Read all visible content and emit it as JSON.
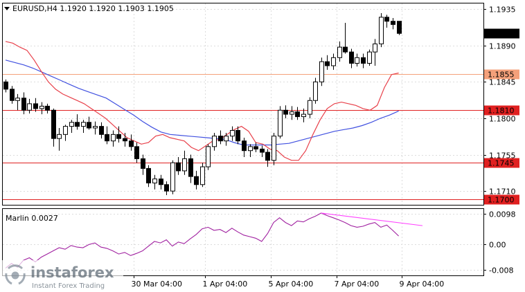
{
  "header": {
    "symbol_line": "EURUSD,H4  1.1920 1.1920 1.1903 1.1905"
  },
  "indicator": {
    "label": "Marlin 0.0027"
  },
  "watermark": {
    "brand": "instaforex",
    "tagline": "Instant Forex Trading"
  },
  "colors": {
    "candle": "#000000",
    "ma_fast": "#e8404a",
    "ma_slow": "#4050e0",
    "level_orange": "#f4a07a",
    "level_red": "#e02020",
    "oscillator": "#a020a0",
    "trend": "#ff40ff",
    "grid": "#dcdcdc"
  },
  "chart_data": [
    {
      "type": "candlestick",
      "title": "EURUSD,H4",
      "ylim": [
        1.1693,
        1.1942
      ],
      "y_ticks": [
        "1.1935",
        "1.1890",
        "1.1845",
        "1.1800",
        "1.1755",
        "1.1710"
      ],
      "x_ticks": [
        "30 Mar 04:00",
        "1 Apr 04:00",
        "5 Apr 04:00",
        "7 Apr 04:00",
        "9 Apr 04:00"
      ],
      "current_price": "1.1905",
      "levels": [
        {
          "label": "1.1855",
          "value": 1.1855,
          "color": "#f4a07a"
        },
        {
          "label": "1.1810",
          "value": 1.181,
          "color": "#e02020"
        },
        {
          "label": "1.1745",
          "value": 1.1745,
          "color": "#e02020"
        },
        {
          "label": "1.1700",
          "value": 1.17,
          "color": "#e02020"
        }
      ],
      "candles": [
        [
          1.1845,
          1.1848,
          1.1832,
          1.1836
        ],
        [
          1.1836,
          1.184,
          1.1818,
          1.1822
        ],
        [
          1.1822,
          1.183,
          1.181,
          1.1825
        ],
        [
          1.1825,
          1.1832,
          1.1805,
          1.181
        ],
        [
          1.181,
          1.1824,
          1.1806,
          1.1818
        ],
        [
          1.1818,
          1.1825,
          1.1808,
          1.1812
        ],
        [
          1.1812,
          1.182,
          1.1805,
          1.1815
        ],
        [
          1.1815,
          1.1818,
          1.1806,
          1.181
        ],
        [
          1.181,
          1.1812,
          1.1765,
          1.1775
        ],
        [
          1.1775,
          1.1788,
          1.176,
          1.178
        ],
        [
          1.178,
          1.1792,
          1.1772,
          1.179
        ],
        [
          1.179,
          1.1798,
          1.1782,
          1.1795
        ],
        [
          1.1795,
          1.1805,
          1.1786,
          1.179
        ],
        [
          1.179,
          1.1798,
          1.1782,
          1.1795
        ],
        [
          1.1795,
          1.1802,
          1.1786,
          1.1788
        ],
        [
          1.1788,
          1.1796,
          1.178,
          1.179
        ],
        [
          1.179,
          1.1795,
          1.1775,
          1.178
        ],
        [
          1.178,
          1.179,
          1.1768,
          1.1772
        ],
        [
          1.1772,
          1.1785,
          1.1765,
          1.178
        ],
        [
          1.178,
          1.179,
          1.177,
          1.1775
        ],
        [
          1.1775,
          1.1782,
          1.1765,
          1.1772
        ],
        [
          1.1772,
          1.178,
          1.176,
          1.1765
        ],
        [
          1.1765,
          1.177,
          1.1745,
          1.175
        ],
        [
          1.175,
          1.1755,
          1.173,
          1.1738
        ],
        [
          1.1738,
          1.1742,
          1.1715,
          1.172
        ],
        [
          1.172,
          1.173,
          1.1712,
          1.1725
        ],
        [
          1.1725,
          1.173,
          1.1712,
          1.1718
        ],
        [
          1.1718,
          1.1722,
          1.1705,
          1.171
        ],
        [
          1.171,
          1.1748,
          1.1706,
          1.1745
        ],
        [
          1.1745,
          1.1752,
          1.173,
          1.1735
        ],
        [
          1.1735,
          1.176,
          1.173,
          1.175
        ],
        [
          1.175,
          1.1755,
          1.172,
          1.1728
        ],
        [
          1.1728,
          1.1735,
          1.1712,
          1.1718
        ],
        [
          1.1718,
          1.1745,
          1.1715,
          1.174
        ],
        [
          1.174,
          1.1768,
          1.1736,
          1.1765
        ],
        [
          1.1765,
          1.1782,
          1.176,
          1.1778
        ],
        [
          1.1778,
          1.1785,
          1.1768,
          1.1772
        ],
        [
          1.1772,
          1.1782,
          1.1766,
          1.1778
        ],
        [
          1.1778,
          1.179,
          1.1772,
          1.1785
        ],
        [
          1.1785,
          1.179,
          1.1768,
          1.1772
        ],
        [
          1.1772,
          1.1776,
          1.1752,
          1.176
        ],
        [
          1.176,
          1.1768,
          1.1752,
          1.1765
        ],
        [
          1.1765,
          1.177,
          1.1758,
          1.1762
        ],
        [
          1.1762,
          1.1766,
          1.1752,
          1.1758
        ],
        [
          1.1758,
          1.1762,
          1.174,
          1.1748
        ],
        [
          1.1748,
          1.1782,
          1.1742,
          1.1778
        ],
        [
          1.1778,
          1.1815,
          1.1775,
          1.181
        ],
        [
          1.181,
          1.1816,
          1.18,
          1.1805
        ],
        [
          1.1805,
          1.1815,
          1.1798,
          1.1808
        ],
        [
          1.1808,
          1.1814,
          1.1798,
          1.1802
        ],
        [
          1.1802,
          1.1812,
          1.1795,
          1.1805
        ],
        [
          1.1805,
          1.1826,
          1.18,
          1.1822
        ],
        [
          1.1822,
          1.185,
          1.1818,
          1.1845
        ],
        [
          1.1845,
          1.1875,
          1.184,
          1.187
        ],
        [
          1.187,
          1.1878,
          1.186,
          1.1865
        ],
        [
          1.1865,
          1.188,
          1.186,
          1.1875
        ],
        [
          1.1875,
          1.1895,
          1.187,
          1.1888
        ],
        [
          1.1888,
          1.1918,
          1.188,
          1.1882
        ],
        [
          1.1882,
          1.1886,
          1.1862,
          1.1868
        ],
        [
          1.1868,
          1.188,
          1.1864,
          1.1875
        ],
        [
          1.1875,
          1.188,
          1.1862,
          1.1868
        ],
        [
          1.1868,
          1.1885,
          1.1865,
          1.1882
        ],
        [
          1.1882,
          1.1898,
          1.1865,
          1.1892
        ],
        [
          1.1892,
          1.193,
          1.1888,
          1.1925
        ],
        [
          1.1925,
          1.1928,
          1.1912,
          1.192
        ],
        [
          1.192,
          1.1924,
          1.191,
          1.1916
        ],
        [
          1.192,
          1.192,
          1.1903,
          1.1905
        ]
      ],
      "ma_fast": [
        1.1895,
        1.1893,
        1.1888,
        1.1884,
        1.1872,
        1.1858,
        1.1845,
        1.1836,
        1.183,
        1.1826,
        1.1822,
        1.1818,
        1.1812,
        1.1806,
        1.18,
        1.1792,
        1.1784,
        1.1776,
        1.1772,
        1.1768,
        1.177,
        1.1778,
        1.178,
        1.1776,
        1.1774,
        1.1772,
        1.1764,
        1.176,
        1.1766,
        1.1772,
        1.1774,
        1.178,
        1.1786,
        1.179,
        1.1784,
        1.177,
        1.1768,
        1.1762,
        1.176,
        1.1752,
        1.1748,
        1.1748,
        1.176,
        1.178,
        1.1798,
        1.1812,
        1.1818,
        1.182,
        1.1818,
        1.1816,
        1.1812,
        1.181,
        1.1816,
        1.1838,
        1.1854,
        1.1856
      ],
      "ma_slow": [
        1.1872,
        1.1869,
        1.1866,
        1.1862,
        1.1857,
        1.1852,
        1.1847,
        1.1842,
        1.1837,
        1.1833,
        1.1829,
        1.1825,
        1.1818,
        1.1811,
        1.1804,
        1.1796,
        1.1789,
        1.1783,
        1.178,
        1.1779,
        1.1778,
        1.1777,
        1.1776,
        1.1775,
        1.1774,
        1.177,
        1.1767,
        1.1767,
        1.1767,
        1.1767,
        1.1768,
        1.1769,
        1.1772,
        1.1775,
        1.1778,
        1.1781,
        1.1784,
        1.1786,
        1.1788,
        1.1791,
        1.1795,
        1.18,
        1.1804,
        1.1809
      ],
      "oscillator": {
        "name": "Marlin",
        "value": "0.0027",
        "ylim": [
          -0.0098,
          0.0113
        ],
        "y_ticks": [
          "0.0098",
          "0.00",
          "-0.008"
        ],
        "values": [
          -0.0075,
          -0.006,
          -0.0072,
          -0.005,
          -0.0042,
          -0.0055,
          -0.004,
          -0.003,
          -0.002,
          -0.001,
          -0.0015,
          -0.0003,
          -0.0008,
          -0.001,
          0.0,
          0.0005,
          -0.0008,
          -0.0012,
          -0.002,
          -0.003,
          -0.0025,
          -0.0035,
          -0.0028,
          -0.002,
          -0.0005,
          0.001,
          0.0005,
          0.0015,
          -0.0005,
          0.0008,
          0.0003,
          0.0018,
          0.0032,
          0.005,
          0.0055,
          0.0045,
          0.0048,
          0.0038,
          0.0052,
          0.004,
          0.003,
          0.0025,
          0.002,
          0.001,
          0.0035,
          0.007,
          0.0085,
          0.007,
          0.006,
          0.0075,
          0.0072,
          0.0082,
          0.009,
          0.01,
          0.0092,
          0.0085,
          0.0078,
          0.007,
          0.006,
          0.0055,
          0.0058,
          0.0065,
          0.007,
          0.0055,
          0.0062,
          0.0045,
          0.0027
        ],
        "trend": [
          0.01,
          0.006
        ]
      }
    }
  ]
}
